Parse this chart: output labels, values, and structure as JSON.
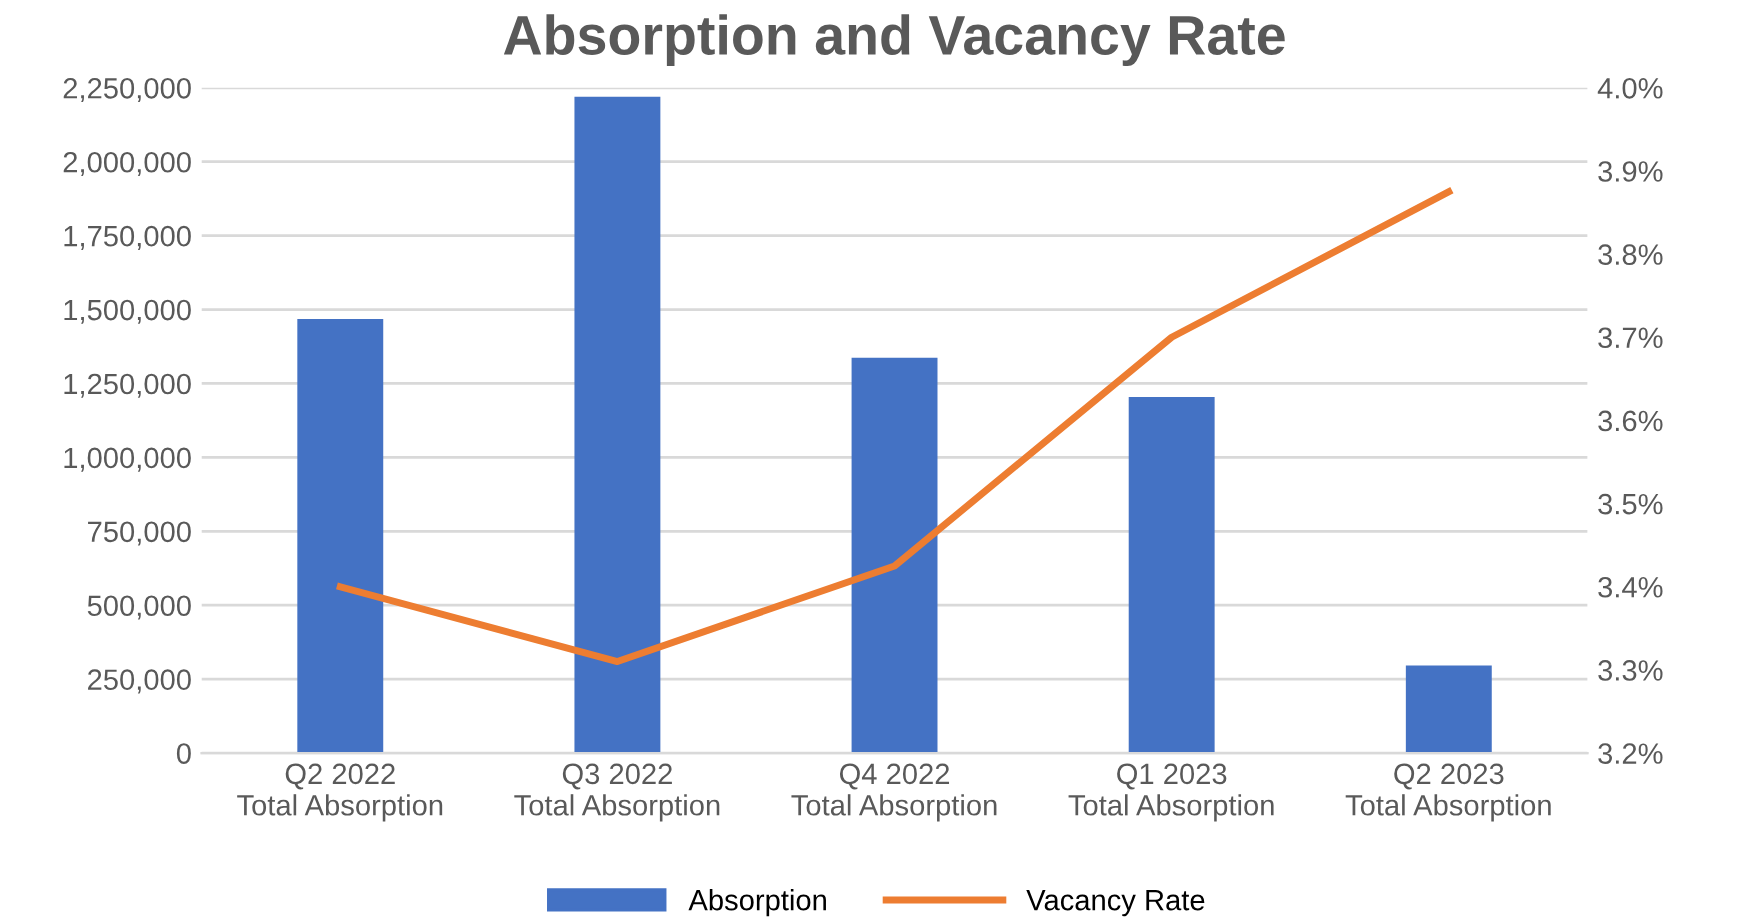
{
  "chart_data": {
    "type": "bar",
    "title": "Absorption and Vacancy Rate",
    "categories": [
      "Q2 2022\nTotal Absorption",
      "Q3 2022\nTotal Absorption",
      "Q4 2022\nTotal Absorption",
      "Q1 2023\nTotal Absorption",
      "Q2 2023\nTotal Absorption"
    ],
    "series": [
      {
        "name": "Absorption",
        "color": "#4472c4",
        "values": [
          1468000,
          2220000,
          1337000,
          1204000,
          296000
        ]
      },
      {
        "name": "Vacancy Rate",
        "type": "line",
        "axis": "y2",
        "color": "#ed7d31",
        "values": [
          3.4,
          3.31,
          3.425,
          3.7,
          3.875
        ]
      }
    ],
    "ylim": [
      0,
      2250000
    ],
    "yticks": [
      0,
      {
        "value": 250000,
        "label": "250,000"
      },
      {
        "value": 500000,
        "label": "500,000"
      },
      {
        "value": 750000,
        "label": "750,000"
      },
      {
        "value": 1000000,
        "label": "1,000,000"
      },
      {
        "value": 1250000,
        "label": "1,250,000"
      },
      {
        "value": 1500000,
        "label": "1,500,000"
      },
      {
        "value": 1750000,
        "label": "1,750,000"
      },
      {
        "value": 2000000,
        "label": "2,000,000"
      },
      {
        "value": 2250000,
        "label": "2,250,000"
      }
    ],
    "y2lim": [
      3.2,
      4.0
    ],
    "y2ticks": [
      {
        "value": 3.2,
        "label": "3.2%"
      },
      {
        "value": 3.3,
        "label": "3.3%"
      },
      {
        "value": 3.4,
        "label": "3.4%"
      },
      {
        "value": 3.5,
        "label": "3.5%"
      },
      {
        "value": 3.6,
        "label": "3.6%"
      },
      {
        "value": 3.7,
        "label": "3.7%"
      },
      {
        "value": 3.8,
        "label": "3.8%"
      },
      {
        "value": 3.9,
        "label": "3.9%"
      },
      {
        "value": 4.0,
        "label": "4.0%"
      }
    ],
    "grid": "y",
    "legend": "bottom",
    "marker": "none",
    "line_style": "solid"
  }
}
